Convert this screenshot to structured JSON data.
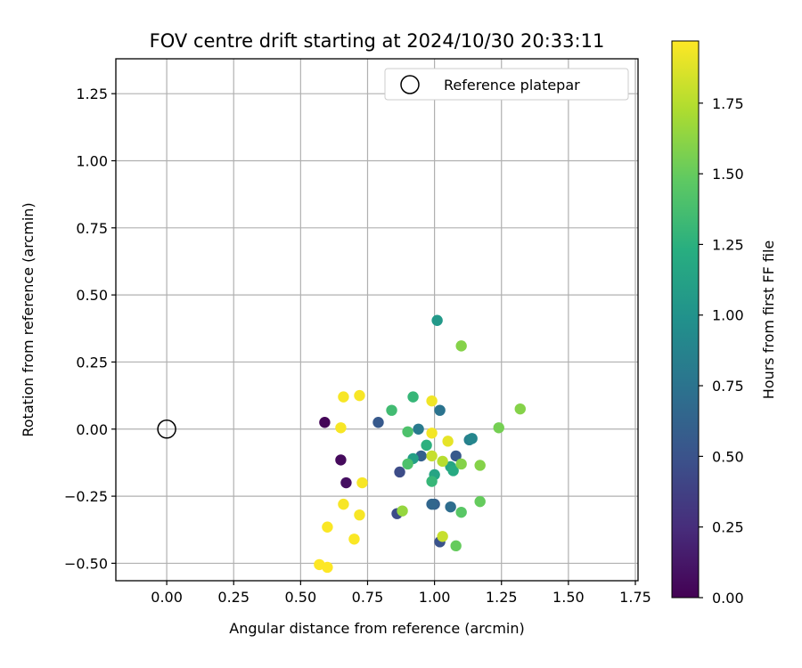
{
  "chart_data": {
    "type": "scatter",
    "title": "FOV centre drift starting at 2024/10/30 20:33:11",
    "xlabel": "Angular distance from reference (arcmin)",
    "ylabel": "Rotation from reference (arcmin)",
    "xlim": [
      -0.19,
      1.76
    ],
    "ylim": [
      -0.565,
      1.38
    ],
    "xticks": [
      "0.00",
      "0.25",
      "0.50",
      "0.75",
      "1.00",
      "1.25",
      "1.50",
      "1.75"
    ],
    "xtick_values": [
      0,
      0.25,
      0.5,
      0.75,
      1.0,
      1.25,
      1.5,
      1.75
    ],
    "yticks": [
      "1.25",
      "1.00",
      "0.75",
      "0.50",
      "0.25",
      "0.00",
      "−0.25",
      "−0.50"
    ],
    "ytick_values": [
      1.25,
      1.0,
      0.75,
      0.5,
      0.25,
      0.0,
      -0.25,
      -0.5
    ],
    "grid": true,
    "legend_position": "top-right",
    "legend_label": "Reference platepar",
    "reference_point": {
      "x": 0.0,
      "y": 0.0
    },
    "colorbar": {
      "label": "Hours from first FF file",
      "min": 0.0,
      "max": 1.97,
      "ticks": [
        "0.00",
        "0.25",
        "0.50",
        "0.75",
        "1.00",
        "1.25",
        "1.50",
        "1.75"
      ],
      "tick_values": [
        0,
        0.25,
        0.5,
        0.75,
        1.0,
        1.25,
        1.5,
        1.75
      ],
      "colormap": "viridis"
    },
    "points": [
      {
        "x": 0.59,
        "y": 0.025,
        "h": 0.02
      },
      {
        "x": 0.65,
        "y": -0.115,
        "h": 0.05
      },
      {
        "x": 0.67,
        "y": -0.2,
        "h": 0.08
      },
      {
        "x": 0.86,
        "y": -0.315,
        "h": 0.45
      },
      {
        "x": 0.87,
        "y": -0.16,
        "h": 0.45
      },
      {
        "x": 0.79,
        "y": 0.025,
        "h": 0.55
      },
      {
        "x": 0.95,
        "y": -0.1,
        "h": 0.6
      },
      {
        "x": 1.02,
        "y": -0.42,
        "h": 0.5
      },
      {
        "x": 1.08,
        "y": -0.1,
        "h": 0.55
      },
      {
        "x": 1.0,
        "y": -0.28,
        "h": 0.6
      },
      {
        "x": 0.99,
        "y": -0.28,
        "h": 0.65
      },
      {
        "x": 1.06,
        "y": -0.29,
        "h": 0.7
      },
      {
        "x": 1.02,
        "y": 0.07,
        "h": 0.75
      },
      {
        "x": 0.94,
        "y": 0.0,
        "h": 0.8
      },
      {
        "x": 1.13,
        "y": -0.04,
        "h": 0.85
      },
      {
        "x": 1.14,
        "y": -0.035,
        "h": 0.9
      },
      {
        "x": 1.01,
        "y": 0.405,
        "h": 1.05
      },
      {
        "x": 0.92,
        "y": -0.11,
        "h": 1.1
      },
      {
        "x": 1.0,
        "y": -0.17,
        "h": 1.15
      },
      {
        "x": 1.06,
        "y": -0.14,
        "h": 1.15
      },
      {
        "x": 1.07,
        "y": -0.155,
        "h": 1.2
      },
      {
        "x": 0.97,
        "y": -0.06,
        "h": 1.25
      },
      {
        "x": 0.92,
        "y": 0.12,
        "h": 1.3
      },
      {
        "x": 0.99,
        "y": -0.195,
        "h": 1.3
      },
      {
        "x": 0.84,
        "y": 0.07,
        "h": 1.35
      },
      {
        "x": 0.9,
        "y": -0.01,
        "h": 1.4
      },
      {
        "x": 0.9,
        "y": -0.13,
        "h": 1.4
      },
      {
        "x": 1.1,
        "y": -0.31,
        "h": 1.45
      },
      {
        "x": 1.17,
        "y": -0.27,
        "h": 1.5
      },
      {
        "x": 1.08,
        "y": -0.435,
        "h": 1.5
      },
      {
        "x": 1.24,
        "y": 0.005,
        "h": 1.55
      },
      {
        "x": 1.17,
        "y": -0.135,
        "h": 1.6
      },
      {
        "x": 1.1,
        "y": -0.13,
        "h": 1.6
      },
      {
        "x": 1.32,
        "y": 0.075,
        "h": 1.6
      },
      {
        "x": 1.1,
        "y": 0.31,
        "h": 1.6
      },
      {
        "x": 0.88,
        "y": -0.305,
        "h": 1.65
      },
      {
        "x": 1.03,
        "y": -0.12,
        "h": 1.75
      },
      {
        "x": 0.99,
        "y": -0.1,
        "h": 1.8
      },
      {
        "x": 1.03,
        "y": -0.4,
        "h": 1.8
      },
      {
        "x": 1.05,
        "y": -0.045,
        "h": 1.9
      },
      {
        "x": 0.99,
        "y": 0.105,
        "h": 1.93
      },
      {
        "x": 0.99,
        "y": -0.015,
        "h": 1.94
      },
      {
        "x": 0.66,
        "y": 0.12,
        "h": 1.95
      },
      {
        "x": 0.72,
        "y": 0.125,
        "h": 1.95
      },
      {
        "x": 0.65,
        "y": 0.005,
        "h": 1.95
      },
      {
        "x": 0.73,
        "y": -0.2,
        "h": 1.95
      },
      {
        "x": 0.66,
        "y": -0.28,
        "h": 1.95
      },
      {
        "x": 0.72,
        "y": -0.32,
        "h": 1.95
      },
      {
        "x": 0.6,
        "y": -0.365,
        "h": 1.96
      },
      {
        "x": 0.7,
        "y": -0.41,
        "h": 1.96
      },
      {
        "x": 0.57,
        "y": -0.505,
        "h": 1.97
      },
      {
        "x": 0.6,
        "y": -0.515,
        "h": 1.97
      }
    ]
  }
}
